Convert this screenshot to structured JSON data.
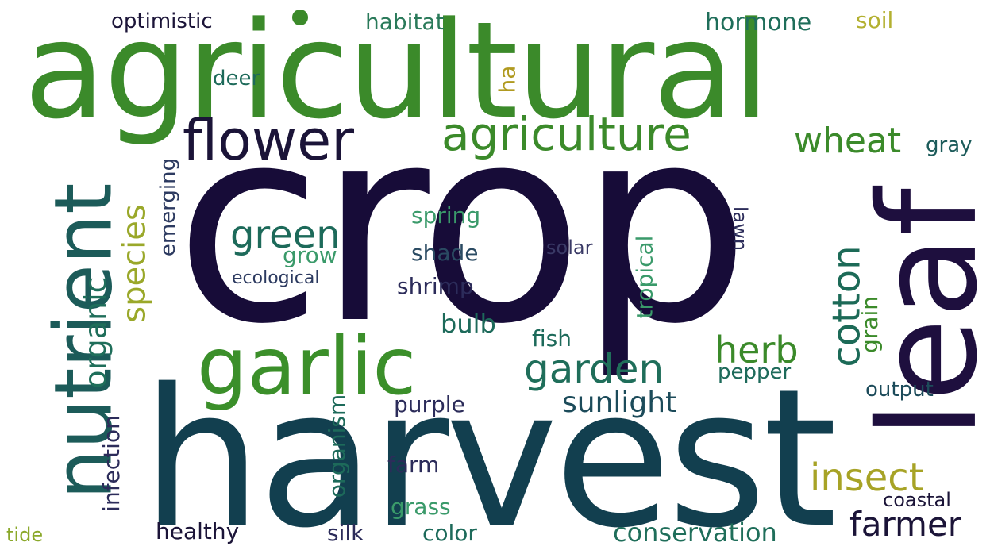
{
  "cloud": {
    "words": [
      {
        "text": "agricultural",
        "color": "#3b8a2a"
      },
      {
        "text": "crop",
        "color": "#170c38"
      },
      {
        "text": "harvest",
        "color": "#123f4f"
      },
      {
        "text": "nutrient",
        "color": "#1c5b59"
      },
      {
        "text": "leaf",
        "color": "#1e0f3e"
      },
      {
        "text": "garlic",
        "color": "#3b8f2a"
      },
      {
        "text": "flower",
        "color": "#1b1438"
      },
      {
        "text": "agriculture",
        "color": "#3b8a2a"
      },
      {
        "text": "wheat",
        "color": "#3b8a2a"
      },
      {
        "text": "green",
        "color": "#1d6a5a"
      },
      {
        "text": "garden",
        "color": "#1f6e5a"
      },
      {
        "text": "herb",
        "color": "#3b8a2a"
      },
      {
        "text": "cotton",
        "color": "#1c6a57"
      },
      {
        "text": "insect",
        "color": "#a7a326"
      },
      {
        "text": "farmer",
        "color": "#1b1438"
      },
      {
        "text": "species",
        "color": "#9aa82a"
      },
      {
        "text": "organic",
        "color": "#1f6e5a"
      },
      {
        "text": "sunlight",
        "color": "#1c4b5a"
      },
      {
        "text": "conservation",
        "color": "#1f6e5a"
      },
      {
        "text": "optimistic",
        "color": "#1b1438"
      },
      {
        "text": "habitat",
        "color": "#2a7a5a"
      },
      {
        "text": "hormone",
        "color": "#1f6e5a"
      },
      {
        "text": "soil",
        "color": "#b3b030"
      },
      {
        "text": "deer",
        "color": "#1d6a5a"
      },
      {
        "text": "ha",
        "color": "#b09a20"
      },
      {
        "text": "gray",
        "color": "#1c5b5a"
      },
      {
        "text": "emerging",
        "color": "#2c3a60"
      },
      {
        "text": "spring",
        "color": "#3a9a6a"
      },
      {
        "text": "grow",
        "color": "#3a9a6a"
      },
      {
        "text": "shade",
        "color": "#2a4a62"
      },
      {
        "text": "ecological",
        "color": "#2c3a60"
      },
      {
        "text": "solar",
        "color": "#3a3a66"
      },
      {
        "text": "lawn",
        "color": "#2c2c5a"
      },
      {
        "text": "shrimp",
        "color": "#2c2c5a"
      },
      {
        "text": "tropical",
        "color": "#3a9a6a"
      },
      {
        "text": "grain",
        "color": "#3b8a2a"
      },
      {
        "text": "bulb",
        "color": "#1d6a5a"
      },
      {
        "text": "fish",
        "color": "#1d6a5a"
      },
      {
        "text": "pepper",
        "color": "#1d6a5a"
      },
      {
        "text": "output",
        "color": "#1c4b5a"
      },
      {
        "text": "purple",
        "color": "#2c2c5a"
      },
      {
        "text": "organism",
        "color": "#1d6a5a"
      },
      {
        "text": "infection",
        "color": "#2c2c5a"
      },
      {
        "text": "farm",
        "color": "#2c2c5a"
      },
      {
        "text": "grass",
        "color": "#3a9a6a"
      },
      {
        "text": "coastal",
        "color": "#1b1438"
      },
      {
        "text": "tide",
        "color": "#8aa82a"
      },
      {
        "text": "healthy",
        "color": "#1b1438"
      },
      {
        "text": "silk",
        "color": "#2c2c5a"
      },
      {
        "text": "color",
        "color": "#1d6a5a"
      }
    ]
  }
}
